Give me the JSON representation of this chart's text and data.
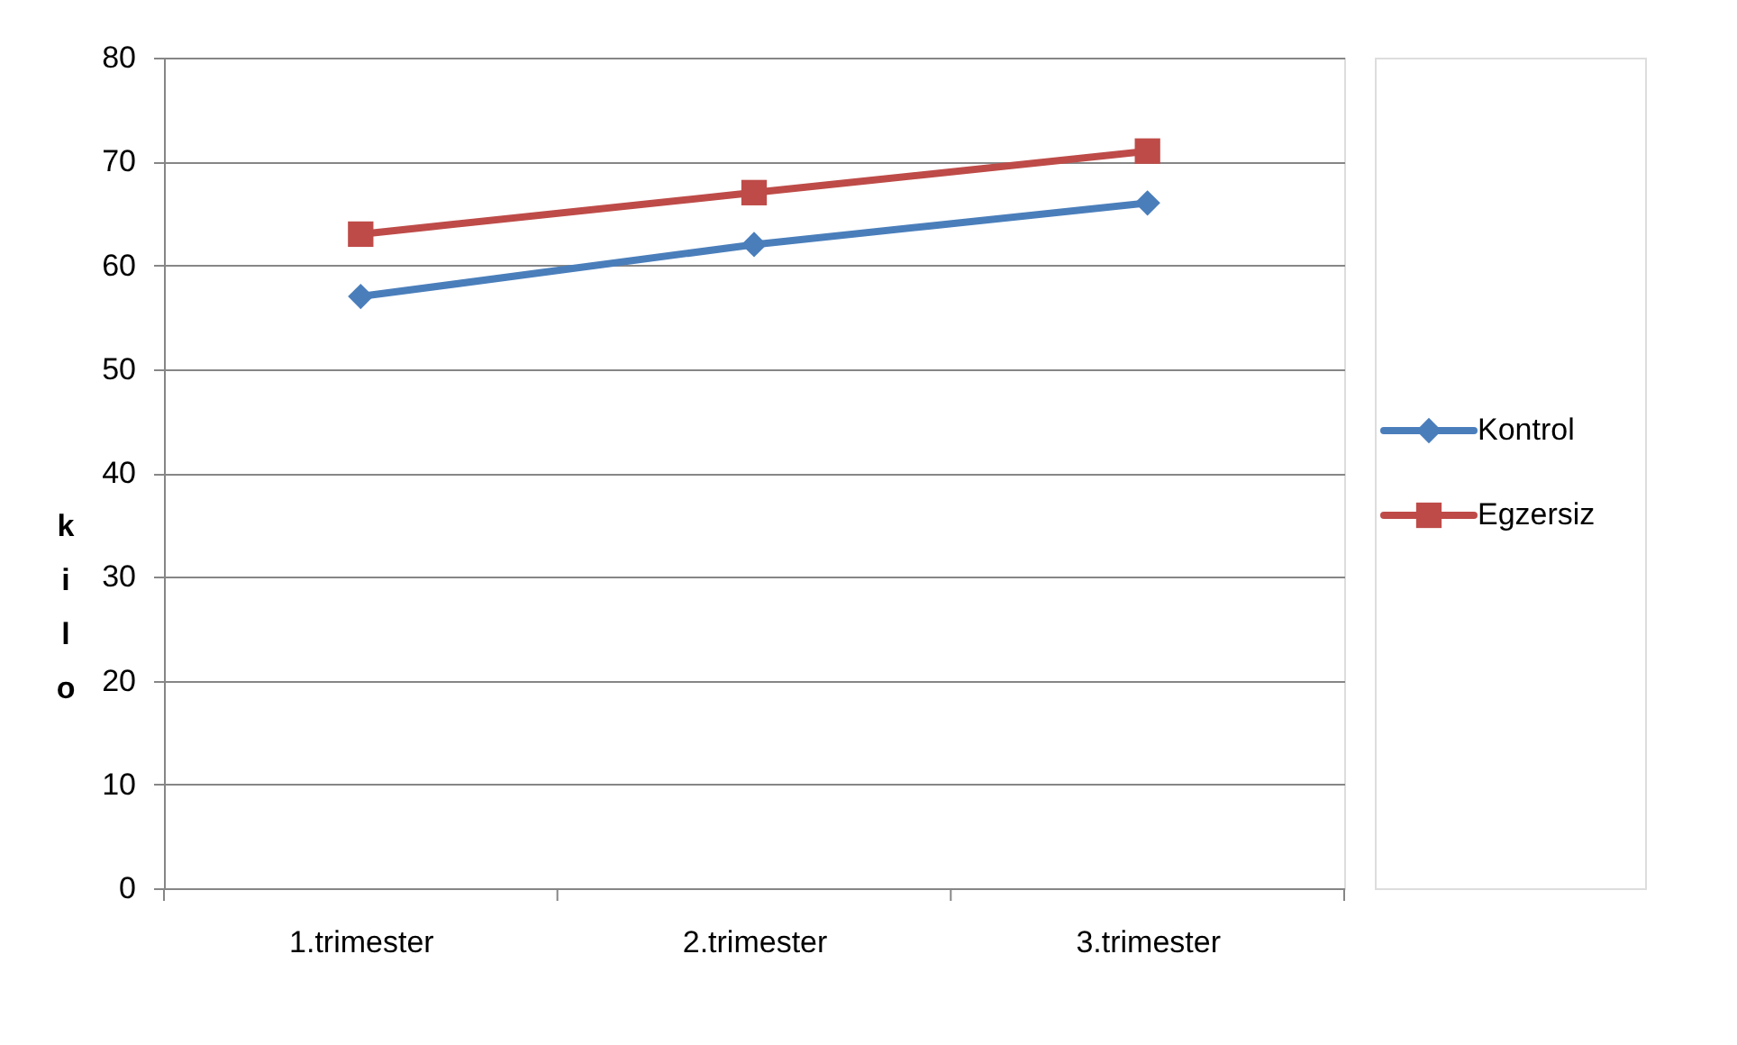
{
  "chart_data": {
    "type": "line",
    "ylabel": "kilo",
    "categories": [
      "1.trimester",
      "2.trimester",
      "3.trimester"
    ],
    "series": [
      {
        "name": "Kontrol",
        "color": "#4a7ebb",
        "marker": "diamond",
        "values": [
          57,
          62,
          66
        ]
      },
      {
        "name": "Egzersiz",
        "color": "#be4b48",
        "marker": "square",
        "values": [
          63,
          67,
          71
        ]
      }
    ],
    "ylim": [
      0,
      80
    ],
    "yticks": [
      0,
      10,
      20,
      30,
      40,
      50,
      60,
      70,
      80
    ],
    "grid": "y",
    "legend": "right",
    "line_style": "solid"
  }
}
